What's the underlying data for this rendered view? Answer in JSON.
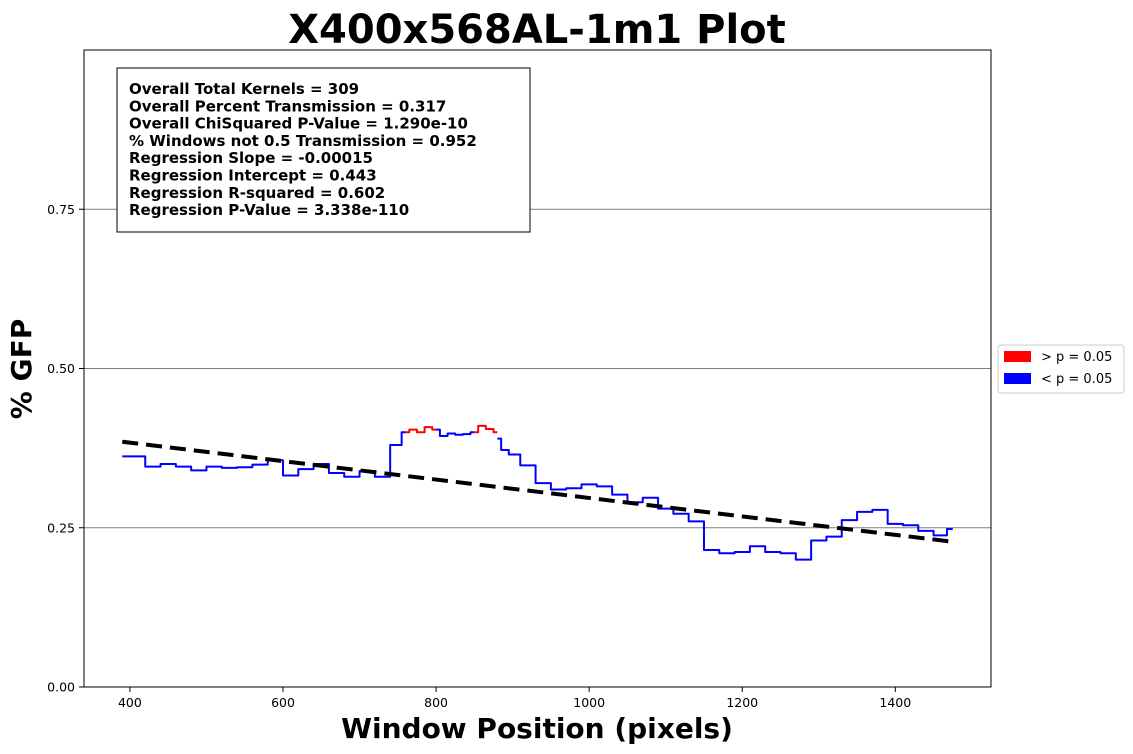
{
  "chart_data": {
    "type": "line",
    "title": "X400x568AL-1m1 Plot",
    "xlabel": "Window Position (pixels)",
    "ylabel": "% GFP",
    "xlim": [
      340,
      1525
    ],
    "ylim": [
      0,
      1.0
    ],
    "xticks": [
      400,
      600,
      800,
      1000,
      1200,
      1400
    ],
    "yticks": [
      0.0,
      0.25,
      0.5,
      0.75
    ],
    "ytick_labels": [
      "0.00",
      "0.25",
      "0.50",
      "0.75"
    ],
    "grid": "horizontal",
    "legend_position": "right",
    "legend": [
      {
        "label": "> p = 0.05",
        "color": "#ff0000"
      },
      {
        "label": "< p = 0.05",
        "color": "#0000ff"
      }
    ],
    "stats": [
      "Overall Total Kernels = 309",
      "Overall Percent Transmission = 0.317",
      "Overall ChiSquared P-Value = 1.290e-10",
      "% Windows not 0.5 Transmission = 0.952",
      "Regression Slope = -0.00015",
      "Regression Intercept = 0.443",
      "Regression R-squared = 0.602",
      "Regression P-Value = 3.338e-110"
    ],
    "series": [
      {
        "label_ref": "< p = 0.05",
        "color": "#0000ff",
        "x": [
          390,
          410,
          430,
          450,
          470,
          490,
          510,
          530,
          550,
          570,
          590,
          610,
          630,
          650,
          670,
          690,
          710,
          730,
          750,
          760
        ],
        "y": [
          0.362,
          0.362,
          0.346,
          0.35,
          0.346,
          0.34,
          0.346,
          0.344,
          0.345,
          0.349,
          0.356,
          0.332,
          0.342,
          0.35,
          0.336,
          0.33,
          0.339,
          0.33,
          0.38,
          0.4
        ]
      },
      {
        "label_ref": "> p = 0.05",
        "color": "#ff0000",
        "x": [
          760,
          770,
          780,
          790,
          800
        ],
        "y": [
          0.4,
          0.404,
          0.4,
          0.408,
          0.404
        ]
      },
      {
        "label_ref": "< p = 0.05",
        "color": "#0000ff",
        "x": [
          800,
          810,
          820,
          830,
          840,
          850
        ],
        "y": [
          0.404,
          0.394,
          0.398,
          0.396,
          0.397,
          0.4
        ]
      },
      {
        "label_ref": "> p = 0.05",
        "color": "#ff0000",
        "x": [
          850,
          860,
          870,
          880
        ],
        "y": [
          0.4,
          0.41,
          0.405,
          0.4
        ]
      },
      {
        "label_ref": "< p = 0.05",
        "color": "#0000ff",
        "x": [
          880,
          890,
          900,
          920,
          940,
          960,
          980,
          1000,
          1020,
          1040,
          1060,
          1080,
          1100,
          1120,
          1140,
          1160,
          1180,
          1200,
          1220,
          1240,
          1260,
          1280,
          1300,
          1320,
          1340,
          1360,
          1380,
          1400,
          1420,
          1440,
          1460,
          1475
        ],
        "y": [
          0.39,
          0.372,
          0.365,
          0.348,
          0.32,
          0.31,
          0.312,
          0.318,
          0.315,
          0.302,
          0.29,
          0.297,
          0.28,
          0.272,
          0.26,
          0.215,
          0.21,
          0.212,
          0.221,
          0.212,
          0.21,
          0.2,
          0.23,
          0.236,
          0.262,
          0.275,
          0.278,
          0.256,
          0.254,
          0.245,
          0.238,
          0.248
        ]
      }
    ],
    "regression": {
      "label": "regression",
      "color": "#000000",
      "x": [
        390,
        1475
      ],
      "y": [
        0.385,
        0.228
      ]
    }
  }
}
